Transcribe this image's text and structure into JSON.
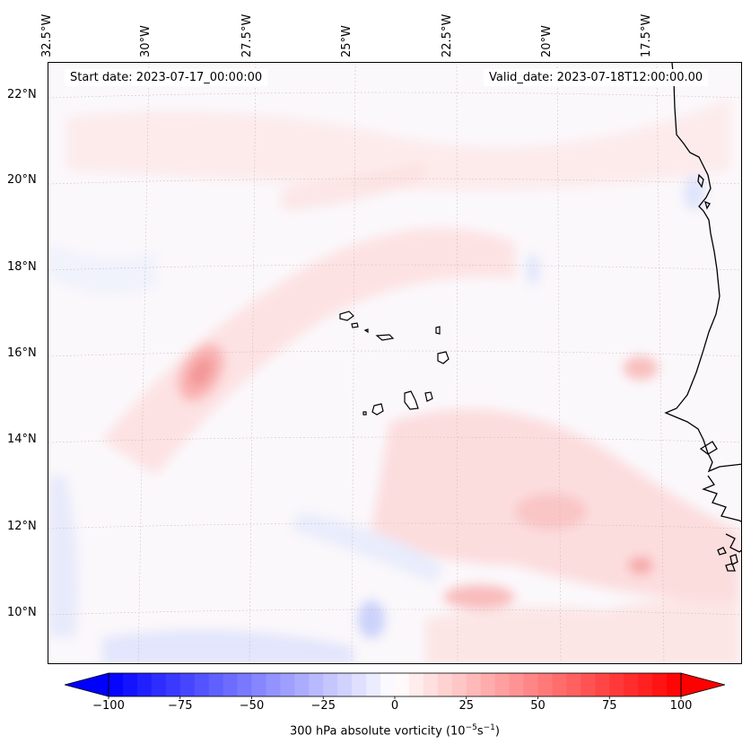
{
  "map": {
    "start_date_label": "Start date: 2023-07-17_00:00:00",
    "valid_date_label": "Valid_date: 2023-07-18T12:00:00.00",
    "lon_labels": [
      "32.5°W",
      "30°W",
      "27.5°W",
      "25°W",
      "22.5°W",
      "20°W",
      "17.5°W"
    ],
    "lat_labels": [
      "22°N",
      "20°N",
      "18°N",
      "16°N",
      "14°N",
      "12°N",
      "10°N"
    ],
    "field": "300 hPa absolute vorticity",
    "colormap": "bwr",
    "coastline_color": "#000000"
  },
  "colorbar": {
    "ticks": [
      "−100",
      "−75",
      "−50",
      "−25",
      "0",
      "25",
      "50",
      "75",
      "100"
    ],
    "label_main": "300 hPa absolute vorticity (10",
    "label_exp1": "−5",
    "label_mid": "s",
    "label_exp2": "−1",
    "label_end": ")",
    "min": -100,
    "max": 100,
    "extend": "both",
    "low_color": "#0000ff",
    "high_color": "#ff0000"
  }
}
